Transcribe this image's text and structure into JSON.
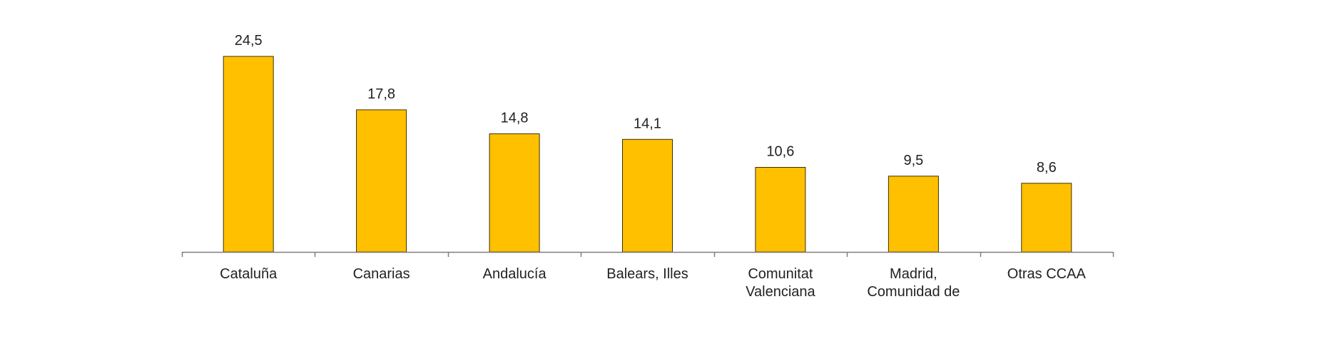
{
  "chart_data": {
    "type": "bar",
    "categories": [
      [
        "Cataluña"
      ],
      [
        "Canarias"
      ],
      [
        "Andalucía"
      ],
      [
        "Balears, Illes"
      ],
      [
        "Comunitat",
        "Valenciana"
      ],
      [
        "Madrid,",
        "Comunidad de"
      ],
      [
        "Otras CCAA"
      ]
    ],
    "values": [
      24.5,
      17.8,
      14.8,
      14.1,
      10.6,
      9.5,
      8.6
    ],
    "value_labels": [
      "24,5",
      "17,8",
      "14,8",
      "14,1",
      "10,6",
      "9,5",
      "8,6"
    ],
    "ylim": [
      0,
      24.5
    ],
    "grid": false,
    "legend": "none",
    "bar_color": "#FFC000",
    "bar_edge_color": "#3b3000",
    "axis_color": "#7f7f7f"
  }
}
